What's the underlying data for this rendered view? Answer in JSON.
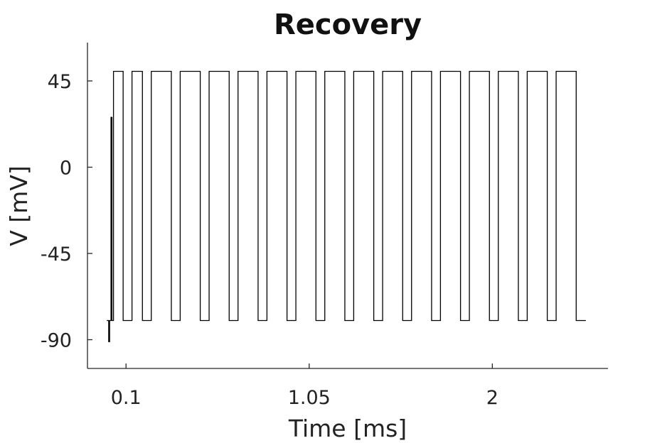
{
  "chart_data": {
    "type": "line",
    "title": "Recovery",
    "xlabel": "Time [ms]",
    "ylabel": "V [mV]",
    "xlim": [
      -0.1,
      2.6
    ],
    "ylim": [
      -105,
      65
    ],
    "x_ticks": [
      0.1,
      1.05,
      2
    ],
    "x_tick_labels": [
      "0.1",
      "1.05",
      "2"
    ],
    "y_ticks": [
      45,
      0,
      -45,
      -90
    ],
    "y_tick_labels": [
      "45",
      "0",
      "-45",
      "-90"
    ],
    "grid": false,
    "series": [
      {
        "color": "#000000",
        "x": [
          0.0,
          0.01,
          0.01,
          0.015,
          0.015,
          0.022,
          0.022,
          0.027,
          0.027,
          0.035,
          0.035,
          0.085,
          0.085,
          0.131,
          0.131,
          0.185,
          0.185,
          0.231,
          0.231,
          0.335,
          0.335,
          0.381,
          0.381,
          0.485,
          0.485,
          0.531,
          0.531,
          0.635,
          0.635,
          0.681,
          0.681,
          0.785,
          0.785,
          0.831,
          0.831,
          0.935,
          0.935,
          0.981,
          0.981,
          1.085,
          1.085,
          1.131,
          1.131,
          1.235,
          1.235,
          1.281,
          1.281,
          1.385,
          1.385,
          1.431,
          1.431,
          1.535,
          1.535,
          1.581,
          1.581,
          1.685,
          1.685,
          1.731,
          1.731,
          1.835,
          1.835,
          1.881,
          1.881,
          1.985,
          1.985,
          2.031,
          2.031,
          2.135,
          2.135,
          2.181,
          2.181,
          2.285,
          2.285,
          2.331,
          2.331,
          2.435,
          2.435,
          2.485
        ],
        "y": [
          -80,
          -80,
          -91,
          -91,
          -80,
          -80,
          26,
          26,
          -80,
          -80,
          50,
          50,
          -80,
          -80,
          50,
          50,
          -80,
          -80,
          50,
          50,
          -80,
          -80,
          50,
          50,
          -80,
          -80,
          50,
          50,
          -80,
          -80,
          50,
          50,
          -80,
          -80,
          50,
          50,
          -80,
          -80,
          50,
          50,
          -80,
          -80,
          50,
          50,
          -80,
          -80,
          50,
          50,
          -80,
          -80,
          50,
          50,
          -80,
          -80,
          50,
          50,
          -80,
          -80,
          50,
          50,
          -80,
          -80,
          50,
          50,
          -80,
          -80,
          50,
          50,
          -80,
          -80,
          50,
          50,
          -80,
          -80,
          50,
          50,
          -80,
          -80
        ]
      }
    ]
  }
}
